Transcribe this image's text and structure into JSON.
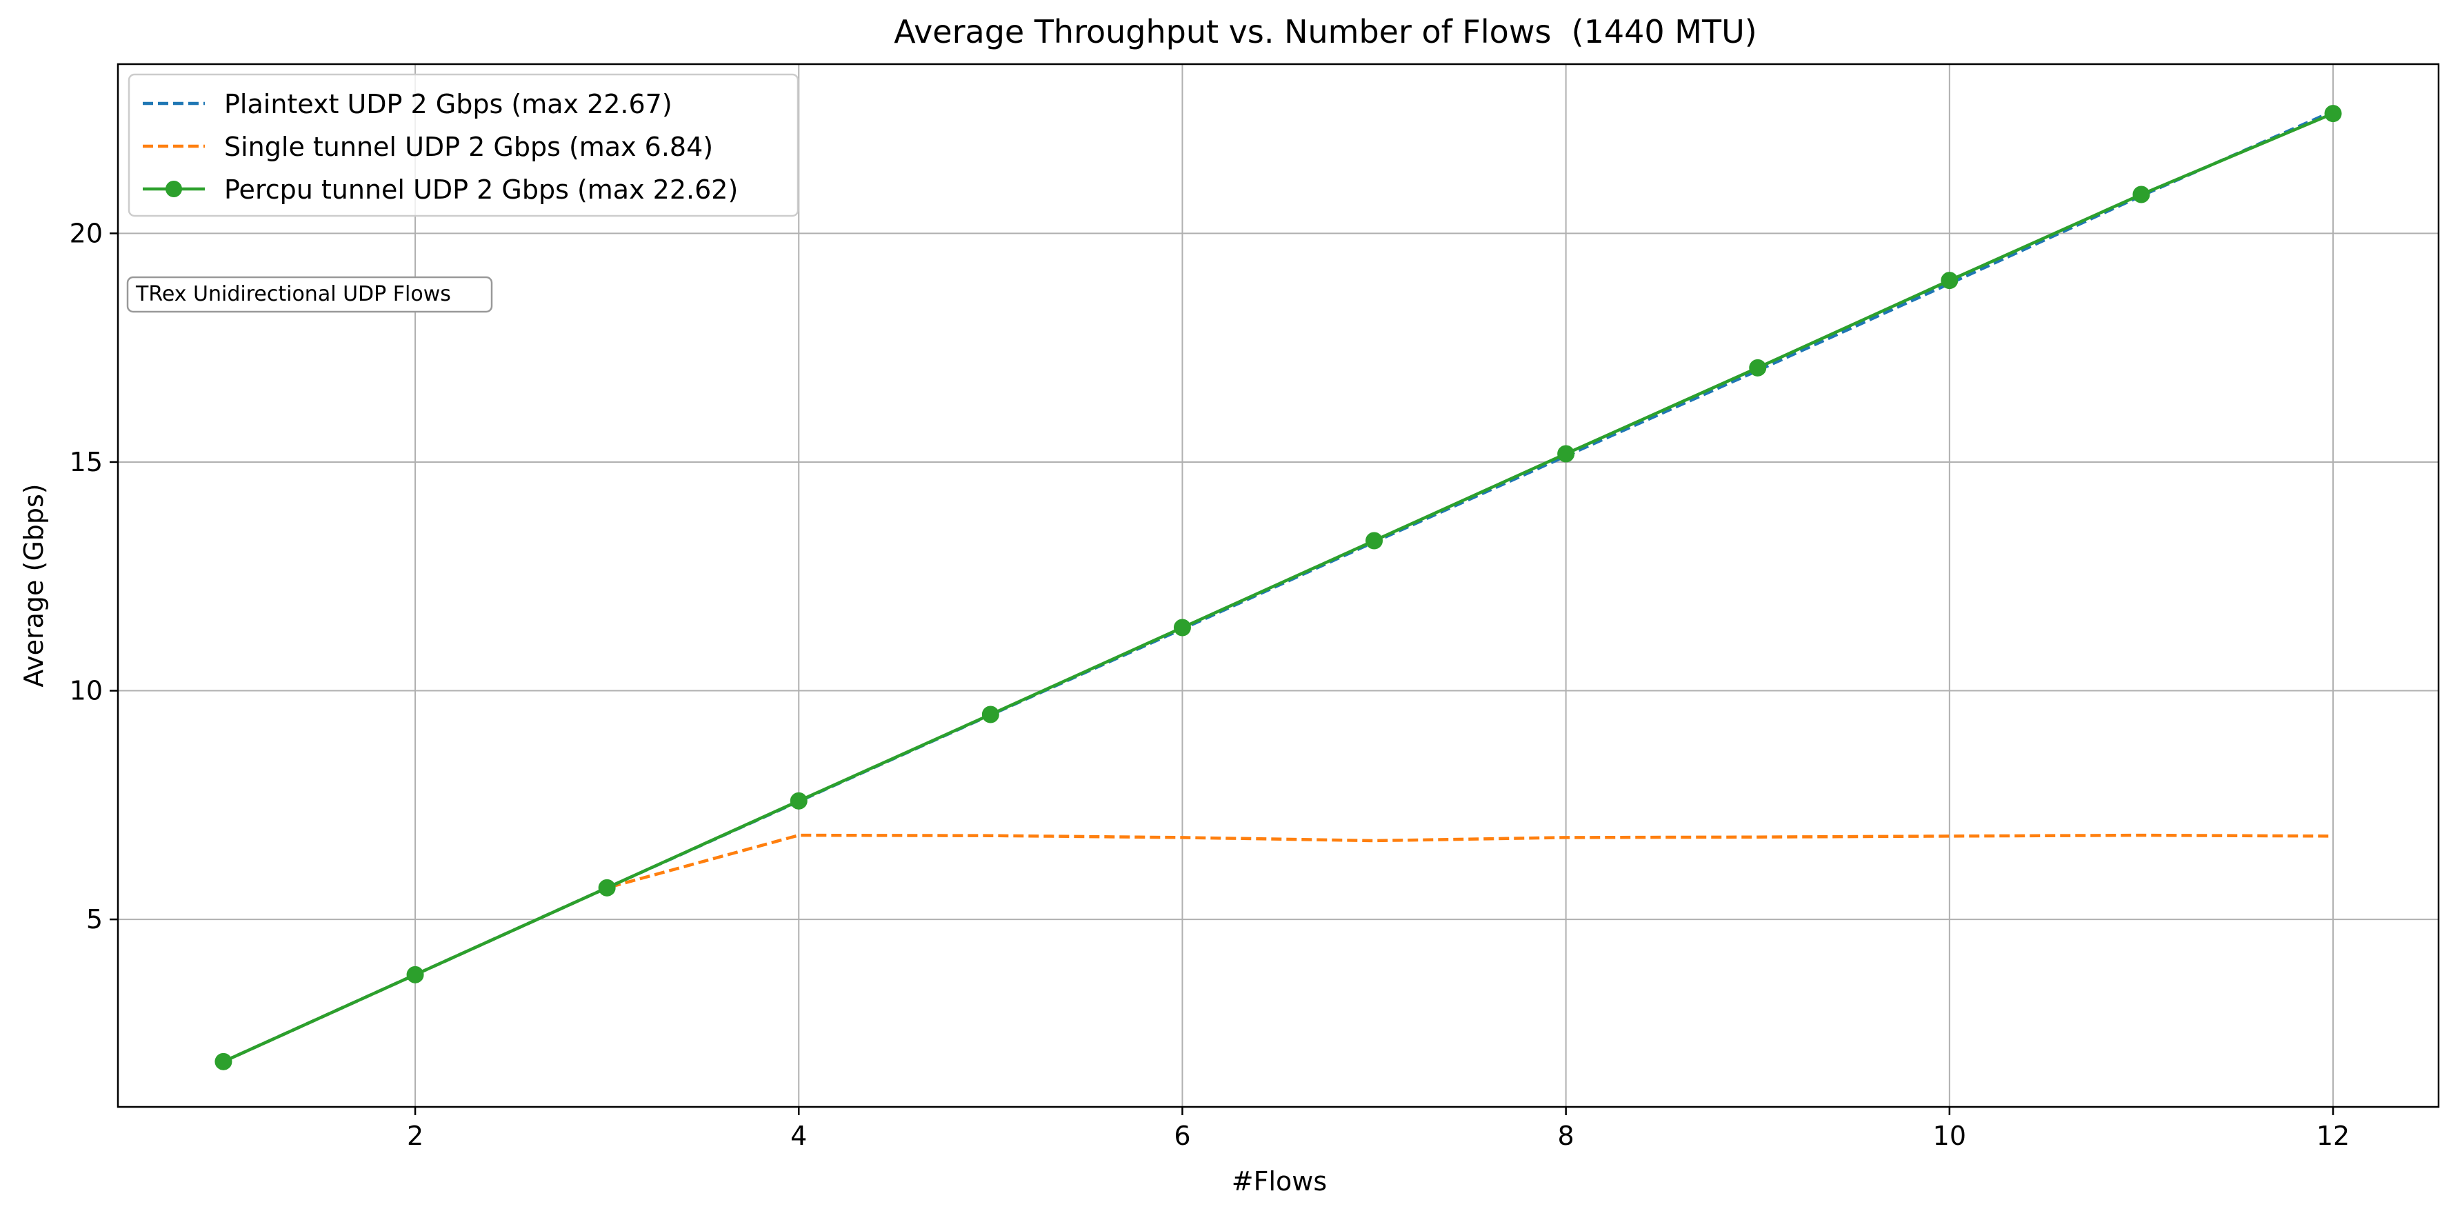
{
  "chart_data": {
    "type": "line",
    "title": "Average Throughput vs. Number of Flows  (1440 MTU)",
    "xlabel": "#Flows",
    "ylabel": "Average (Gbps)",
    "xlim": [
      0.45,
      12.55
    ],
    "ylim": [
      0.9,
      23.7
    ],
    "x_ticks": [
      2,
      4,
      6,
      8,
      10,
      12
    ],
    "y_ticks": [
      5,
      10,
      15,
      20
    ],
    "grid": true,
    "legend_position": "top-left",
    "x": [
      1,
      2,
      3,
      4,
      5,
      6,
      7,
      8,
      9,
      10,
      11,
      12
    ],
    "series": [
      {
        "name": "Plaintext UDP 2 Gbps (max 22.67)",
        "color": "#1f77b4",
        "style": "dashed",
        "marker": "none",
        "values": [
          1.89,
          3.79,
          5.69,
          7.58,
          9.47,
          11.35,
          13.25,
          15.13,
          17.0,
          18.9,
          20.82,
          22.67
        ]
      },
      {
        "name": "Single tunnel UDP 2 Gbps (max 6.84)",
        "color": "#ff7f0e",
        "style": "dashed",
        "marker": "none",
        "values": [
          1.89,
          3.79,
          5.69,
          6.84,
          6.83,
          6.79,
          6.72,
          6.79,
          6.8,
          6.82,
          6.84,
          6.82
        ]
      },
      {
        "name": "Percpu tunnel UDP 2 Gbps (max 22.62)",
        "color": "#2ca02c",
        "style": "solid",
        "marker": "circle",
        "values": [
          1.89,
          3.79,
          5.69,
          7.59,
          9.48,
          11.38,
          13.28,
          15.18,
          17.06,
          18.97,
          20.85,
          22.62
        ]
      }
    ],
    "annotation": "TRex Unidirectional UDP Flows"
  }
}
